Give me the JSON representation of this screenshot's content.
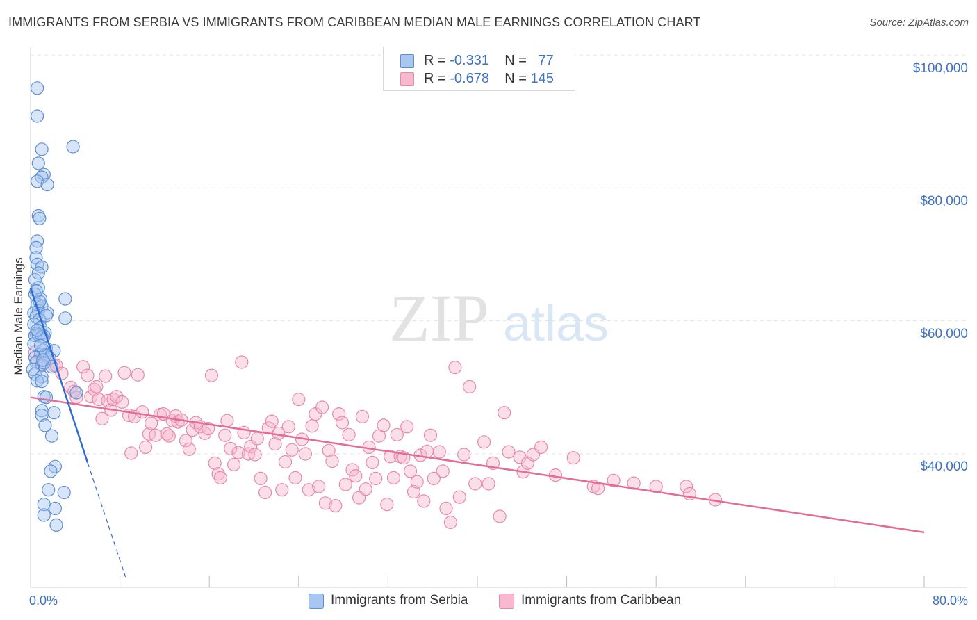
{
  "title": "IMMIGRANTS FROM SERBIA VS IMMIGRANTS FROM CARIBBEAN MEDIAN MALE EARNINGS CORRELATION CHART",
  "source": "Source: ZipAtlas.com",
  "watermark": {
    "zip": "ZIP",
    "atlas": "atlas"
  },
  "legend_top": {
    "serbia": {
      "r_label": "R =",
      "r_value": "-0.331",
      "n_label": "N =",
      "n_value": "77"
    },
    "caribbean": {
      "r_label": "R =",
      "r_value": "-0.678",
      "n_label": "N =",
      "n_value": "145"
    }
  },
  "colors": {
    "serbia_fill": "#a9c6f0",
    "serbia_stroke": "#5b8fd6",
    "serbia_line": "#2f6bd0",
    "caribbean_fill": "#f7b9cd",
    "caribbean_stroke": "#e889a9",
    "caribbean_line": "#e46b97",
    "axis_text": "#3d72c4",
    "grid": "#e3e3e3"
  },
  "chart_data": {
    "type": "scatter",
    "title": "IMMIGRANTS FROM SERBIA VS IMMIGRANTS FROM CARIBBEAN MEDIAN MALE EARNINGS CORRELATION CHART",
    "xlabel": "",
    "ylabel": "Median Male Earnings",
    "xlim": [
      0,
      80
    ],
    "ylim": [
      20000,
      105000
    ],
    "x_tick_labels": [
      "0.0%",
      "80.0%"
    ],
    "y_ticks": [
      40000,
      60000,
      80000,
      100000
    ],
    "y_tick_labels": [
      "$40,000",
      "$60,000",
      "$80,000",
      "$100,000"
    ],
    "grid": true,
    "legend_position": "top-center",
    "series": [
      {
        "name": "Immigrants from Serbia",
        "R": -0.331,
        "N": 77,
        "trend": {
          "x": [
            0.0,
            5.1
          ],
          "y": [
            65000,
            38700
          ],
          "dashed_extension_to": [
            8.5,
            21500
          ]
        },
        "points": [
          [
            0.6,
            95000
          ],
          [
            0.6,
            90800
          ],
          [
            1.0,
            85800
          ],
          [
            3.8,
            86200
          ],
          [
            0.7,
            83700
          ],
          [
            1.2,
            82000
          ],
          [
            1.0,
            81600
          ],
          [
            0.6,
            81000
          ],
          [
            1.5,
            80500
          ],
          [
            0.7,
            75800
          ],
          [
            0.8,
            75400
          ],
          [
            0.6,
            72000
          ],
          [
            0.5,
            71000
          ],
          [
            0.5,
            69500
          ],
          [
            0.6,
            68500
          ],
          [
            1.0,
            68100
          ],
          [
            0.4,
            66200
          ],
          [
            0.7,
            65000
          ],
          [
            0.4,
            64000
          ],
          [
            0.9,
            63300
          ],
          [
            3.1,
            63300
          ],
          [
            0.6,
            62500
          ],
          [
            1.0,
            62200
          ],
          [
            0.7,
            61500
          ],
          [
            1.5,
            61200
          ],
          [
            0.3,
            61200
          ],
          [
            0.5,
            60600
          ],
          [
            0.8,
            60200
          ],
          [
            3.1,
            60400
          ],
          [
            0.3,
            59500
          ],
          [
            0.9,
            59000
          ],
          [
            1.3,
            58200
          ],
          [
            0.5,
            58100
          ],
          [
            0.4,
            57800
          ],
          [
            0.7,
            57900
          ],
          [
            1.2,
            57700
          ],
          [
            1.0,
            57600
          ],
          [
            0.3,
            56500
          ],
          [
            1.4,
            55900
          ],
          [
            1.1,
            55600
          ],
          [
            2.1,
            55500
          ],
          [
            0.9,
            55000
          ],
          [
            1.3,
            54900
          ],
          [
            0.4,
            54500
          ],
          [
            1.7,
            54400
          ],
          [
            0.5,
            53800
          ],
          [
            1.0,
            53300
          ],
          [
            1.2,
            53700
          ],
          [
            1.9,
            53100
          ],
          [
            0.2,
            52700
          ],
          [
            0.4,
            52000
          ],
          [
            1.0,
            51600
          ],
          [
            0.6,
            51000
          ],
          [
            1.0,
            50900
          ],
          [
            4.1,
            49200
          ],
          [
            1.2,
            48600
          ],
          [
            1.4,
            48500
          ],
          [
            1.0,
            46500
          ],
          [
            2.1,
            46200
          ],
          [
            1.0,
            45800
          ],
          [
            1.3,
            44300
          ],
          [
            1.9,
            42700
          ],
          [
            2.2,
            38100
          ],
          [
            1.8,
            37400
          ],
          [
            1.6,
            34600
          ],
          [
            3.0,
            34200
          ],
          [
            1.2,
            32400
          ],
          [
            2.2,
            31800
          ],
          [
            1.2,
            30800
          ],
          [
            2.3,
            29300
          ],
          [
            0.8,
            62900
          ],
          [
            0.5,
            64500
          ],
          [
            1.4,
            60800
          ],
          [
            0.9,
            56300
          ],
          [
            0.6,
            58600
          ],
          [
            1.1,
            54100
          ],
          [
            0.7,
            67200
          ]
        ]
      },
      {
        "name": "Immigrants from Caribbean",
        "R": -0.678,
        "N": 145,
        "trend": {
          "x": [
            0.0,
            80.0
          ],
          "y": [
            48500,
            28200
          ]
        },
        "points": [
          [
            0.4,
            55300
          ],
          [
            0.6,
            54000
          ],
          [
            1.0,
            53500
          ],
          [
            1.5,
            54900
          ],
          [
            2.1,
            53300
          ],
          [
            2.3,
            53300
          ],
          [
            2.8,
            52100
          ],
          [
            3.6,
            50000
          ],
          [
            3.9,
            49400
          ],
          [
            4.1,
            48500
          ],
          [
            4.7,
            53100
          ],
          [
            5.1,
            51800
          ],
          [
            5.4,
            48600
          ],
          [
            5.7,
            49700
          ],
          [
            5.9,
            50100
          ],
          [
            6.1,
            48200
          ],
          [
            6.4,
            45300
          ],
          [
            6.7,
            51700
          ],
          [
            6.9,
            48000
          ],
          [
            7.2,
            46600
          ],
          [
            7.4,
            48200
          ],
          [
            7.7,
            48600
          ],
          [
            8.2,
            47800
          ],
          [
            8.4,
            52200
          ],
          [
            8.8,
            45800
          ],
          [
            9.0,
            40100
          ],
          [
            9.3,
            45600
          ],
          [
            9.6,
            51900
          ],
          [
            10.0,
            46300
          ],
          [
            10.3,
            41000
          ],
          [
            10.6,
            43000
          ],
          [
            10.8,
            44600
          ],
          [
            11.2,
            42800
          ],
          [
            11.6,
            45900
          ],
          [
            11.9,
            46000
          ],
          [
            12.2,
            43000
          ],
          [
            12.4,
            42700
          ],
          [
            12.7,
            45000
          ],
          [
            13.0,
            45700
          ],
          [
            13.2,
            44800
          ],
          [
            13.5,
            45100
          ],
          [
            13.9,
            42000
          ],
          [
            14.2,
            40700
          ],
          [
            14.5,
            43600
          ],
          [
            14.8,
            44700
          ],
          [
            15.2,
            44100
          ],
          [
            15.6,
            43100
          ],
          [
            15.9,
            43800
          ],
          [
            16.2,
            51800
          ],
          [
            16.5,
            38600
          ],
          [
            16.8,
            37000
          ],
          [
            17.0,
            36400
          ],
          [
            17.4,
            42800
          ],
          [
            17.6,
            45000
          ],
          [
            17.9,
            40800
          ],
          [
            18.2,
            38400
          ],
          [
            18.6,
            40200
          ],
          [
            18.9,
            53800
          ],
          [
            19.1,
            43200
          ],
          [
            19.5,
            40000
          ],
          [
            19.7,
            41100
          ],
          [
            20.1,
            39900
          ],
          [
            20.3,
            42300
          ],
          [
            20.6,
            36300
          ],
          [
            21.0,
            34200
          ],
          [
            21.3,
            43900
          ],
          [
            21.6,
            44900
          ],
          [
            21.9,
            41500
          ],
          [
            22.2,
            43100
          ],
          [
            22.5,
            34600
          ],
          [
            22.8,
            38800
          ],
          [
            23.1,
            44100
          ],
          [
            23.4,
            40600
          ],
          [
            23.7,
            36400
          ],
          [
            24.0,
            48200
          ],
          [
            24.3,
            42200
          ],
          [
            24.6,
            40000
          ],
          [
            24.9,
            34600
          ],
          [
            25.2,
            44200
          ],
          [
            25.5,
            46000
          ],
          [
            25.8,
            35100
          ],
          [
            26.1,
            47000
          ],
          [
            26.4,
            32600
          ],
          [
            26.7,
            40500
          ],
          [
            27.0,
            38900
          ],
          [
            27.3,
            32200
          ],
          [
            27.6,
            46000
          ],
          [
            27.9,
            44700
          ],
          [
            28.2,
            35400
          ],
          [
            28.5,
            42900
          ],
          [
            28.8,
            37600
          ],
          [
            29.1,
            36700
          ],
          [
            29.4,
            33400
          ],
          [
            29.7,
            45600
          ],
          [
            30.0,
            34700
          ],
          [
            30.3,
            41000
          ],
          [
            30.6,
            38700
          ],
          [
            30.9,
            36300
          ],
          [
            31.2,
            42700
          ],
          [
            31.6,
            44300
          ],
          [
            31.9,
            32400
          ],
          [
            32.2,
            39600
          ],
          [
            32.5,
            36400
          ],
          [
            32.8,
            42900
          ],
          [
            33.1,
            39600
          ],
          [
            33.4,
            39400
          ],
          [
            33.7,
            44100
          ],
          [
            34.0,
            37400
          ],
          [
            34.3,
            34300
          ],
          [
            34.6,
            35800
          ],
          [
            34.9,
            39800
          ],
          [
            35.2,
            32900
          ],
          [
            35.5,
            40400
          ],
          [
            35.8,
            42800
          ],
          [
            36.1,
            36300
          ],
          [
            36.6,
            40300
          ],
          [
            36.9,
            37400
          ],
          [
            37.2,
            31800
          ],
          [
            37.6,
            29700
          ],
          [
            38.0,
            53000
          ],
          [
            38.4,
            33500
          ],
          [
            38.8,
            39900
          ],
          [
            39.3,
            50100
          ],
          [
            39.8,
            35500
          ],
          [
            40.6,
            41800
          ],
          [
            41.0,
            35500
          ],
          [
            41.4,
            38600
          ],
          [
            42.0,
            30600
          ],
          [
            42.4,
            46200
          ],
          [
            42.8,
            40300
          ],
          [
            43.8,
            39500
          ],
          [
            44.1,
            37300
          ],
          [
            44.5,
            38600
          ],
          [
            45.0,
            39900
          ],
          [
            45.7,
            41000
          ],
          [
            47.0,
            36800
          ],
          [
            48.6,
            39400
          ],
          [
            50.4,
            35100
          ],
          [
            50.8,
            34800
          ],
          [
            52.2,
            36000
          ],
          [
            54.0,
            35600
          ],
          [
            56.0,
            35100
          ],
          [
            58.7,
            35100
          ],
          [
            59.0,
            34000
          ],
          [
            61.3,
            33100
          ]
        ]
      }
    ]
  }
}
